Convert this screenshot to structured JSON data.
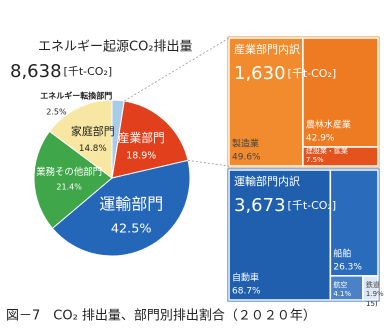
{
  "chart_data": [
    {
      "type": "pie",
      "title": "エネルギー起源CO₂排出量",
      "total": "8,638",
      "unit": "[千t-CO₂]",
      "categories": [
        "産業部門",
        "運輸部門",
        "業務その他部門",
        "家庭部門",
        "エネルギー転換部門"
      ],
      "values": [
        18.9,
        42.5,
        21.4,
        14.8,
        2.5
      ],
      "value_labels": [
        "18.9%",
        "42.5%",
        "21.4%",
        "14.8%",
        "2.5%"
      ],
      "colors": [
        "#e2401c",
        "#2466b8",
        "#3fa649",
        "#f7e7a2",
        "#a8cbe9"
      ]
    },
    {
      "type": "treemap",
      "title": "産業部門内訳",
      "total": "1,630",
      "unit": "[千t-CO₂]",
      "categories": [
        "製造業",
        "農林水産業",
        "建設業・鉱業"
      ],
      "values": [
        49.6,
        42.9,
        7.5
      ],
      "value_labels": [
        "49.6%",
        "42.9%",
        "7.5%"
      ],
      "colors": [
        "#f28b2e",
        "#ee7a22",
        "#e5531c"
      ]
    },
    {
      "type": "treemap",
      "title": "運輸部門内訳",
      "total": "3,673",
      "unit": "[千t-CO₂]",
      "categories": [
        "自動車",
        "船舶",
        "航空",
        "鉄道"
      ],
      "values": [
        68.7,
        26.3,
        4.1,
        1.9
      ],
      "value_labels": [
        "68.7%",
        "26.3%",
        "4.1%",
        "1.9%"
      ],
      "colors": [
        "#1f5fae",
        "#2a6cbb",
        "#4b82c5",
        "#dbe7f4"
      ]
    }
  ],
  "caption": {
    "text": "図－7　CO₂ 排出量、部門別排出割合（２０２０年）",
    "note": "15)"
  }
}
